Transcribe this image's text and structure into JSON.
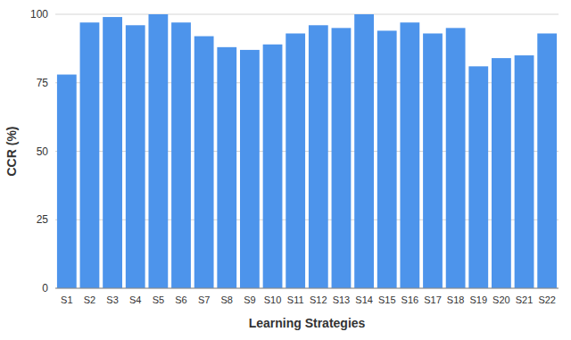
{
  "chart_data": {
    "type": "bar",
    "xlabel": "Learning Strategies",
    "ylabel": "CCR (%)",
    "categories": [
      "S1",
      "S2",
      "S3",
      "S4",
      "S5",
      "S6",
      "S7",
      "S8",
      "S9",
      "S10",
      "S11",
      "S12",
      "S13",
      "S14",
      "S15",
      "S16",
      "S17",
      "S18",
      "S19",
      "S20",
      "S21",
      "S22"
    ],
    "values": [
      78,
      97,
      99,
      96,
      100,
      97,
      92,
      88,
      87,
      89,
      93,
      96,
      95,
      100,
      94,
      97,
      93,
      95,
      81,
      84,
      85,
      93
    ],
    "color": "#4d94eb",
    "ylim": [
      0,
      100
    ],
    "yticks": [
      0,
      25,
      50,
      75,
      100
    ],
    "grid": true
  }
}
